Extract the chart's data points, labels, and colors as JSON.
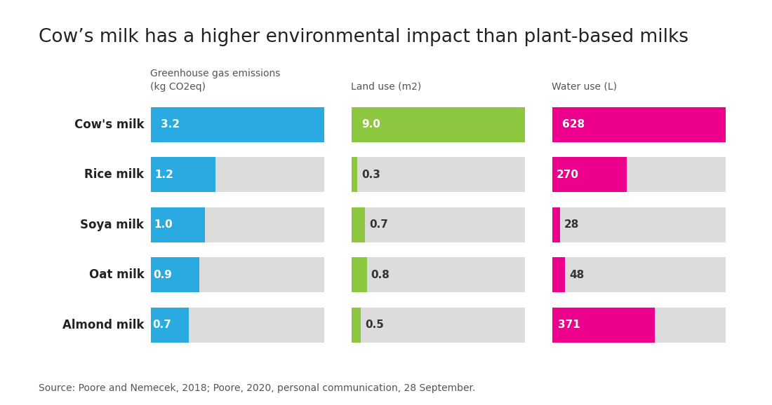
{
  "title": "Cow’s milk has a higher environmental impact than plant-based milks",
  "categories": [
    "Cow's milk",
    "Rice milk",
    "Soya milk",
    "Oat milk",
    "Almond milk"
  ],
  "greenhouse": [
    3.2,
    1.2,
    1.0,
    0.9,
    0.7
  ],
  "greenhouse_max": 3.2,
  "land": [
    9.0,
    0.3,
    0.7,
    0.8,
    0.5
  ],
  "land_max": 9.0,
  "water": [
    628,
    270,
    28,
    48,
    371
  ],
  "water_max": 628,
  "greenhouse_color": "#29ABE2",
  "land_color": "#8DC63F",
  "water_color": "#EC008C",
  "bg_bar_color": "#DCDCDC",
  "col_labels": [
    "Greenhouse gas emissions\n(kg CO2eq)",
    "Land use (m2)",
    "Water use (L)"
  ],
  "value_labels": {
    "greenhouse": [
      "3.2",
      "1.2",
      "1.0",
      "0.9",
      "0.7"
    ],
    "land": [
      "9.0",
      "0.3",
      "0.7",
      "0.8",
      "0.5"
    ],
    "water": [
      "628",
      "270",
      "28",
      "48",
      "371"
    ]
  },
  "source_text": "Source: Poore and Nemecek, 2018; Poore, 2020, personal communication, 28 September.",
  "background_color": "#FFFFFF",
  "title_fontsize": 19,
  "label_fontsize": 12,
  "col_label_fontsize": 10,
  "value_fontsize": 11,
  "source_fontsize": 10
}
